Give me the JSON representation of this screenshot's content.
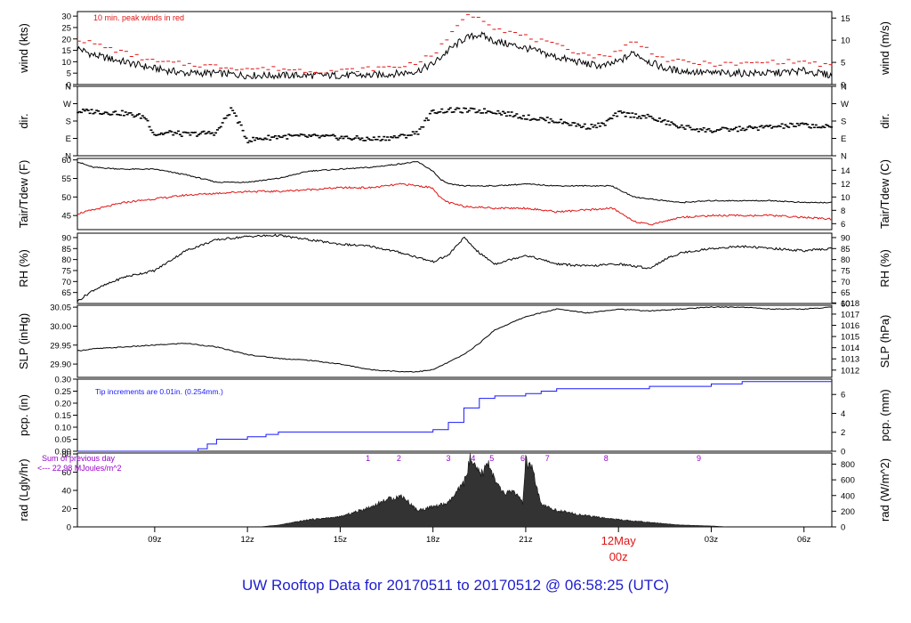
{
  "footer": {
    "prefix": "UW Rooftop Data for",
    "start": "20170511",
    "to": "to",
    "end": "20170512",
    "at": "@",
    "time": "06:58:25",
    "tz": "(UTC)"
  },
  "colors": {
    "primary": "#000000",
    "secondary": "#e11414",
    "precip": "#1a1aff",
    "annotation": "#9900cc",
    "footer": "#1e1ed2"
  },
  "chart_data": [
    {
      "id": "wind",
      "type": "line",
      "ylabel": "wind (kts)",
      "ylabel_right": "wind (m/s)",
      "note": "10 min. peak winds in red",
      "ylim": [
        0,
        32
      ],
      "yticks": [
        0,
        5,
        10,
        15,
        20,
        25,
        30
      ],
      "right_ylim": [
        0,
        16.46
      ],
      "right_yticks": [
        0,
        5,
        10,
        15
      ],
      "x": [
        6.5,
        7,
        8,
        9,
        10,
        11,
        12,
        13,
        14,
        15,
        16,
        17,
        17.5,
        18,
        18.5,
        19,
        19.5,
        20,
        21,
        22,
        23,
        23.5,
        24,
        24.5,
        25,
        25.5,
        26,
        27,
        28,
        29,
        30,
        30.9
      ],
      "series": [
        {
          "values": [
            16,
            13,
            10,
            7,
            5,
            5,
            4,
            4,
            4,
            4,
            4,
            5,
            6,
            9,
            15,
            20,
            22,
            19,
            16,
            12,
            9,
            8,
            10,
            14,
            10,
            7,
            6,
            5,
            5,
            5,
            6,
            4
          ]
        },
        {
          "values": [
            20,
            18,
            14,
            10,
            9,
            8,
            7,
            7,
            6,
            6,
            7,
            8,
            10,
            13,
            20,
            30,
            30,
            25,
            21,
            17,
            13,
            12,
            15,
            19,
            15,
            11,
            10,
            9,
            9,
            10,
            10,
            8
          ]
        }
      ]
    },
    {
      "id": "dir",
      "type": "scatter",
      "ylabel": "dir.",
      "ylabel_right": "dir.",
      "yticks": [
        "N",
        "W",
        "S",
        "E",
        "N"
      ],
      "ylim": [
        0,
        360
      ],
      "tick_values": [
        360,
        270,
        180,
        90,
        0
      ],
      "x": [
        6.5,
        7,
        8,
        8.7,
        9,
        9.5,
        10,
        11,
        11.5,
        12,
        13,
        14,
        15,
        16,
        17,
        17.5,
        18,
        18.5,
        19,
        20,
        21,
        22,
        23,
        23.5,
        24,
        25,
        26,
        27,
        28,
        29,
        30,
        30.9
      ],
      "values": [
        230,
        230,
        220,
        200,
        110,
        120,
        110,
        120,
        245,
        80,
        100,
        100,
        95,
        85,
        100,
        120,
        230,
        235,
        235,
        230,
        200,
        180,
        150,
        160,
        220,
        200,
        150,
        130,
        140,
        150,
        160,
        145
      ]
    },
    {
      "id": "temp",
      "type": "line",
      "ylabel": "Tair/Tdew (F)",
      "ylabel_right": "Tair/Tdew (C)",
      "ylim": [
        41.2,
        60.4
      ],
      "yticks": [
        45,
        50,
        55,
        60
      ],
      "right_ylim": [
        5.11,
        15.78
      ],
      "right_yticks": [
        6,
        8,
        10,
        12,
        14
      ],
      "x": [
        6.5,
        7,
        8,
        9,
        10,
        11,
        12,
        13,
        14,
        15,
        16,
        17,
        17.5,
        18,
        18.2,
        18.5,
        19,
        20,
        21,
        22,
        23,
        23.8,
        24,
        24.5,
        25,
        25.5,
        26,
        27,
        28,
        29,
        30,
        30.9
      ],
      "series": [
        {
          "values": [
            59.5,
            58,
            57.5,
            57.5,
            56,
            54,
            54,
            55,
            57,
            57.5,
            58,
            59,
            59.5,
            57,
            55,
            53.5,
            53,
            53,
            53.5,
            53,
            53,
            53,
            52,
            50,
            49.5,
            49,
            48.5,
            49,
            49,
            49,
            48.5,
            48.5
          ]
        },
        {
          "values": [
            45.5,
            46.5,
            48.5,
            49.5,
            50.5,
            51,
            51.5,
            51.5,
            52,
            52.5,
            52.5,
            53.5,
            53,
            52.5,
            50,
            48.5,
            47.5,
            47,
            47,
            46,
            46.5,
            47,
            46,
            43.5,
            42.5,
            43.5,
            44.5,
            45,
            45,
            45,
            44.5,
            44
          ]
        }
      ]
    },
    {
      "id": "rh",
      "type": "line",
      "ylabel": "RH (%)",
      "ylabel_right": "RH (%)",
      "ylim": [
        60,
        92
      ],
      "yticks": [
        65,
        70,
        75,
        80,
        85,
        90
      ],
      "right_ylim": [
        60,
        92
      ],
      "right_yticks": [
        60,
        65,
        70,
        75,
        80,
        85,
        90
      ],
      "x": [
        6.5,
        7,
        8,
        9,
        10,
        11,
        12,
        13,
        14,
        15,
        16,
        17,
        17.5,
        18,
        18.5,
        19,
        19.5,
        20,
        21,
        22,
        23,
        24,
        24.5,
        25,
        25.5,
        26,
        27,
        28,
        29,
        30,
        30.9
      ],
      "values": [
        61,
        66,
        72,
        75,
        84,
        89,
        90.5,
        91,
        89,
        87,
        86,
        83,
        81,
        79,
        82,
        90,
        83,
        78,
        82,
        78,
        77,
        78,
        77,
        76,
        80,
        83,
        85,
        86,
        85,
        84,
        85
      ]
    },
    {
      "id": "slp",
      "type": "line",
      "ylabel": "SLP (inHg)",
      "ylabel_right": "SLP (hPa)",
      "ylim": [
        29.865,
        30.055
      ],
      "yticks": [
        29.9,
        29.95,
        30.0,
        30.05
      ],
      "ytick_labels": [
        "29.90",
        "29.95",
        "30.00",
        "30.05"
      ],
      "right_ylim": [
        1011.35,
        1017.79
      ],
      "right_yticks": [
        1012,
        1013,
        1014,
        1015,
        1016,
        1017,
        1018
      ],
      "x": [
        6.5,
        7,
        8,
        9,
        10,
        11,
        12,
        13,
        14,
        15,
        16,
        17,
        17.5,
        18,
        18.5,
        19,
        19.5,
        20,
        21,
        22,
        23,
        24,
        25,
        26,
        27,
        28,
        29,
        30,
        30.9
      ],
      "values": [
        29.935,
        29.94,
        29.945,
        29.95,
        29.955,
        29.945,
        29.925,
        29.915,
        29.91,
        29.9,
        29.885,
        29.88,
        29.88,
        29.885,
        29.905,
        29.925,
        29.955,
        29.99,
        30.025,
        30.045,
        30.035,
        30.045,
        30.04,
        30.045,
        30.05,
        30.05,
        30.045,
        30.045,
        30.05
      ]
    },
    {
      "id": "pcp",
      "type": "line",
      "ylabel": "pcp. (in)",
      "ylabel_right": "pcp. (mm)",
      "note": "Tip increments are 0.01in. (0.254mm.)",
      "ylim": [
        0,
        0.3
      ],
      "yticks": [
        0,
        0.05,
        0.1,
        0.15,
        0.2,
        0.25,
        0.3
      ],
      "ytick_labels": [
        "0.00",
        "0.05",
        "0.10",
        "0.15",
        "0.20",
        "0.25",
        "0.30"
      ],
      "right_ylim": [
        0,
        7.62
      ],
      "right_yticks": [
        0,
        2,
        4,
        6
      ],
      "x": [
        6.5,
        10.2,
        10.4,
        10.7,
        11,
        12,
        12.6,
        13,
        14,
        15,
        16,
        17,
        17.2,
        18,
        18.5,
        19,
        19.5,
        20,
        21,
        21.5,
        22,
        23,
        24,
        25,
        26,
        27,
        28,
        29,
        30,
        30.9
      ],
      "values": [
        0,
        0,
        0.01,
        0.03,
        0.05,
        0.06,
        0.07,
        0.08,
        0.08,
        0.08,
        0.08,
        0.08,
        0.08,
        0.09,
        0.12,
        0.18,
        0.22,
        0.23,
        0.24,
        0.25,
        0.26,
        0.26,
        0.26,
        0.27,
        0.27,
        0.28,
        0.29,
        0.29,
        0.29,
        0.29
      ]
    },
    {
      "id": "rad",
      "type": "area",
      "ylabel": "rad (Lgly/hr)",
      "ylabel_right": "rad (W/m^2)",
      "note_line1": "Sum of previous day",
      "note_line2": "<--- 22.98 MJoules/m^2",
      "ylim": [
        0,
        81
      ],
      "yticks": [
        0,
        20,
        40,
        60,
        80
      ],
      "right_ylim": [
        0,
        942
      ],
      "right_yticks": [
        0,
        200,
        400,
        600,
        800
      ],
      "x": [
        12.4,
        13,
        14,
        15,
        16,
        16.5,
        17,
        17.5,
        18,
        18.5,
        19,
        19.2,
        19.4,
        19.6,
        19.8,
        20,
        20.3,
        20.6,
        20.9,
        21,
        21.2,
        21.5,
        22,
        23,
        24,
        25,
        26,
        27,
        27.5
      ],
      "values": [
        0,
        2,
        8,
        11,
        22,
        30,
        34,
        18,
        22,
        26,
        48,
        74,
        62,
        58,
        72,
        50,
        36,
        40,
        26,
        72,
        64,
        24,
        18,
        12,
        8,
        5,
        2,
        1,
        0
      ],
      "markers": [
        {
          "label": "1",
          "x": 15.9
        },
        {
          "label": "2",
          "x": 16.9
        },
        {
          "label": "3",
          "x": 18.5
        },
        {
          "label": "4",
          "x": 19.3
        },
        {
          "label": "5",
          "x": 19.9
        },
        {
          "label": "6",
          "x": 20.9
        },
        {
          "label": "7",
          "x": 21.7
        },
        {
          "label": "8",
          "x": 23.6
        },
        {
          "label": "9",
          "x": 26.6
        }
      ]
    }
  ],
  "x_axis": {
    "xlim": [
      6.5,
      30.9
    ],
    "ticks": [
      {
        "x": 9,
        "label": "09z"
      },
      {
        "x": 12,
        "label": "12z"
      },
      {
        "x": 15,
        "label": "15z"
      },
      {
        "x": 18,
        "label": "18z"
      },
      {
        "x": 21,
        "label": "21z"
      },
      {
        "x": 27,
        "label": "03z"
      },
      {
        "x": 30,
        "label": "06z"
      }
    ],
    "midnight": {
      "x": 24,
      "date": "12May",
      "label": "00z"
    }
  }
}
